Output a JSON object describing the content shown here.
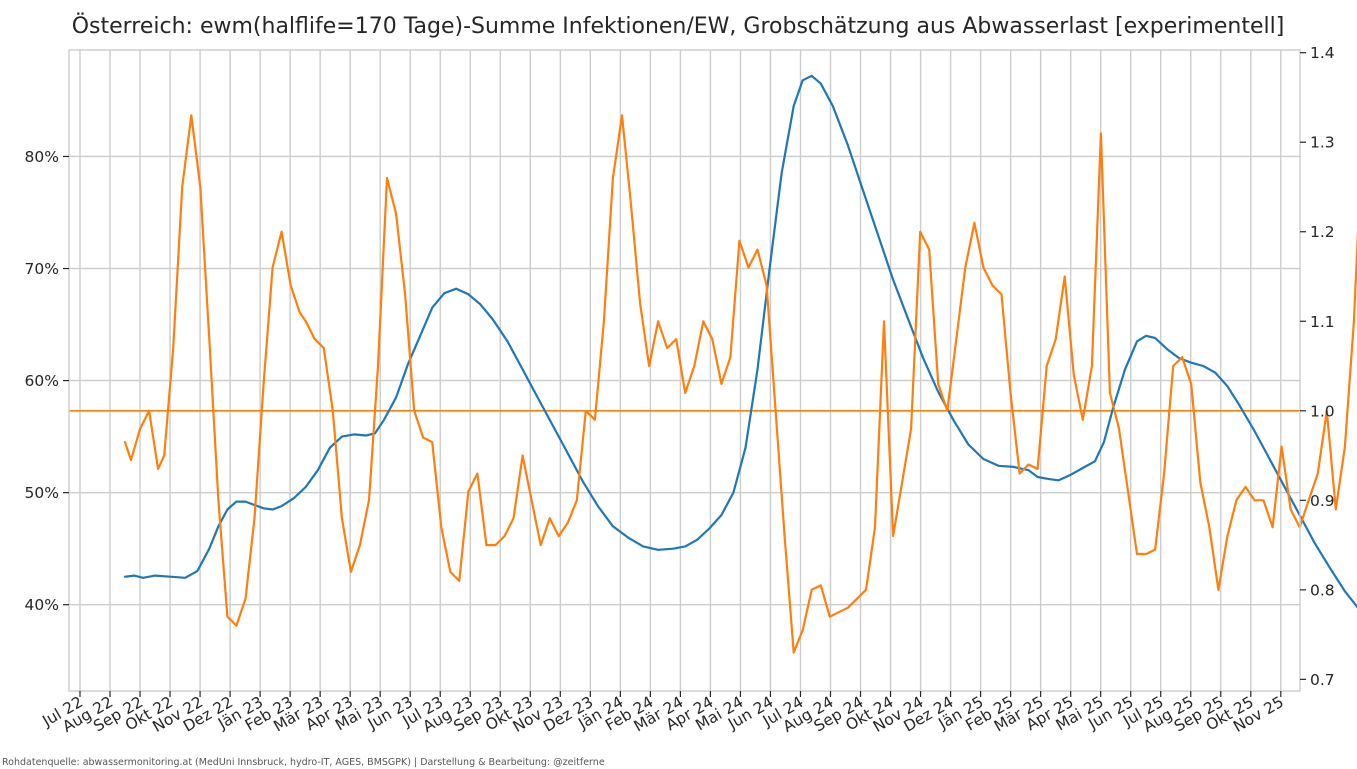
{
  "chart_data": {
    "type": "line",
    "title": "Österreich: ewm(halflife=170 Tage)-Summe Infektionen/EW, Grobschätzung aus Abwasserlast [experimentell]",
    "source_note": "Rohdatenquelle: abwassermonitoring.at (MedUni Innsbruck, hydro-IT, AGES, BMSGPK) | Darstellung & Bearbeitung: @zeitferne",
    "x_axis": {
      "type": "months",
      "range": [
        "2022-06-16",
        "2025-11-16"
      ],
      "tick_labels": [
        "Jul 22",
        "Aug 22",
        "Sep 22",
        "Okt 22",
        "Nov 22",
        "Dez 22",
        "Jän 23",
        "Feb 23",
        "Mär 23",
        "Apr 23",
        "Mai 23",
        "Jun 23",
        "Jul 23",
        "Aug 23",
        "Sep 23",
        "Okt 23",
        "Nov 23",
        "Dez 23",
        "Jän 24",
        "Feb 24",
        "Mär 24",
        "Apr 24",
        "Mai 24",
        "Jun 24",
        "Jul 24",
        "Aug 24",
        "Sep 24",
        "Okt 24",
        "Nov 24",
        "Dez 24",
        "Jän 25",
        "Feb 25",
        "Mär 25",
        "Apr 25",
        "Mai 25",
        "Jun 25",
        "Jul 25",
        "Aug 25",
        "Sep 25",
        "Okt 25",
        "Nov 25"
      ]
    },
    "y_left": {
      "range": [
        32.3,
        89.5
      ],
      "unit": "%",
      "ticks": [
        40,
        50,
        60,
        70,
        80
      ],
      "tick_labels": [
        "40%",
        "50%",
        "60%",
        "70%",
        "80%"
      ]
    },
    "y_right": {
      "range": [
        0.687,
        1.403
      ],
      "ticks": [
        0.7,
        0.8,
        0.9,
        1.0,
        1.1,
        1.2,
        1.3,
        1.4
      ],
      "tick_labels": [
        "0.7",
        "0.8",
        "0.9",
        "1.0",
        "1.1",
        "1.2",
        "1.3",
        "1.4"
      ]
    },
    "reference_line": {
      "axis": "right",
      "value": 1.0,
      "color": "#ff7f0e"
    },
    "grid": true,
    "series": [
      {
        "axis": "left",
        "color": "#1f77b4",
        "points": [
          [
            0,
            42.5
          ],
          [
            0.3,
            42.6
          ],
          [
            0.6,
            42.4
          ],
          [
            1.0,
            42.6
          ],
          [
            1.5,
            42.5
          ],
          [
            2.0,
            42.4
          ],
          [
            2.4,
            43.0
          ],
          [
            2.8,
            45.0
          ],
          [
            3.1,
            47.0
          ],
          [
            3.4,
            48.5
          ],
          [
            3.7,
            49.2
          ],
          [
            4.0,
            49.2
          ],
          [
            4.3,
            48.9
          ],
          [
            4.6,
            48.6
          ],
          [
            4.9,
            48.5
          ],
          [
            5.2,
            48.8
          ],
          [
            5.6,
            49.5
          ],
          [
            6.0,
            50.5
          ],
          [
            6.4,
            52.0
          ],
          [
            6.8,
            54.0
          ],
          [
            7.2,
            55.0
          ],
          [
            7.6,
            55.2
          ],
          [
            8.0,
            55.1
          ],
          [
            8.3,
            55.3
          ],
          [
            8.6,
            56.5
          ],
          [
            9.0,
            58.5
          ],
          [
            9.4,
            61.5
          ],
          [
            9.8,
            64.0
          ],
          [
            10.2,
            66.5
          ],
          [
            10.6,
            67.8
          ],
          [
            11.0,
            68.2
          ],
          [
            11.4,
            67.7
          ],
          [
            11.8,
            66.8
          ],
          [
            12.2,
            65.5
          ],
          [
            12.7,
            63.5
          ],
          [
            13.2,
            61.0
          ],
          [
            13.7,
            58.5
          ],
          [
            14.2,
            56.0
          ],
          [
            14.7,
            53.5
          ],
          [
            15.2,
            51.0
          ],
          [
            15.7,
            48.8
          ],
          [
            16.2,
            47.0
          ],
          [
            16.7,
            46.0
          ],
          [
            17.2,
            45.2
          ],
          [
            17.7,
            44.9
          ],
          [
            18.2,
            45.0
          ],
          [
            18.6,
            45.2
          ],
          [
            19.0,
            45.8
          ],
          [
            19.4,
            46.8
          ],
          [
            19.8,
            48.0
          ],
          [
            20.2,
            50.0
          ],
          [
            20.6,
            54.0
          ],
          [
            21.0,
            61.0
          ],
          [
            21.4,
            70.0
          ],
          [
            21.8,
            78.5
          ],
          [
            22.2,
            84.5
          ],
          [
            22.5,
            86.8
          ],
          [
            22.8,
            87.2
          ],
          [
            23.1,
            86.5
          ],
          [
            23.5,
            84.5
          ],
          [
            24.0,
            81.0
          ],
          [
            24.5,
            77.0
          ],
          [
            25.0,
            73.0
          ],
          [
            25.5,
            69.0
          ],
          [
            26.0,
            65.5
          ],
          [
            26.5,
            62.0
          ],
          [
            27.0,
            59.0
          ],
          [
            27.5,
            56.5
          ],
          [
            28.0,
            54.3
          ],
          [
            28.5,
            53.0
          ],
          [
            29.0,
            52.4
          ],
          [
            29.5,
            52.3
          ],
          [
            30.0,
            52.0
          ],
          [
            30.3,
            51.4
          ],
          [
            30.7,
            51.2
          ],
          [
            31.0,
            51.1
          ],
          [
            31.4,
            51.6
          ],
          [
            31.8,
            52.2
          ],
          [
            32.2,
            52.8
          ],
          [
            32.5,
            54.5
          ],
          [
            32.8,
            57.5
          ],
          [
            33.2,
            61.0
          ],
          [
            33.6,
            63.5
          ],
          [
            33.9,
            64.0
          ],
          [
            34.2,
            63.8
          ],
          [
            34.6,
            62.8
          ],
          [
            35.0,
            62.0
          ],
          [
            35.4,
            61.6
          ],
          [
            35.8,
            61.3
          ],
          [
            36.2,
            60.7
          ],
          [
            36.6,
            59.5
          ],
          [
            37.0,
            57.8
          ],
          [
            37.5,
            55.5
          ],
          [
            38.0,
            53.0
          ],
          [
            38.5,
            50.5
          ],
          [
            39.0,
            48.0
          ],
          [
            39.5,
            45.5
          ],
          [
            40.0,
            43.3
          ],
          [
            40.5,
            41.2
          ],
          [
            41.0,
            39.5
          ],
          [
            41.4,
            38.5
          ],
          [
            41.8,
            38.0
          ],
          [
            42.2,
            37.5
          ],
          [
            42.6,
            36.8
          ],
          [
            43.0,
            36.0
          ],
          [
            43.4,
            35.4
          ],
          [
            43.8,
            35.0
          ],
          [
            44.1,
            34.9
          ],
          [
            44.4,
            35.0
          ],
          [
            44.7,
            35.0
          ],
          [
            44.9,
            35.3
          ],
          [
            45.2,
            35.8
          ]
        ]
      },
      {
        "axis": "left",
        "color": "#1f77b4",
        "style": "dashed",
        "points": [
          [
            45.2,
            35.8
          ],
          [
            45.6,
            36.3
          ],
          [
            46.0,
            36.8
          ],
          [
            46.4,
            37.2
          ]
        ]
      },
      {
        "axis": "right",
        "color": "#ff7f0e",
        "points": [
          [
            0,
            0.965
          ],
          [
            0.2,
            0.945
          ],
          [
            0.5,
            0.98
          ],
          [
            0.8,
            1.0
          ],
          [
            1.1,
            0.935
          ],
          [
            1.3,
            0.95
          ],
          [
            1.6,
            1.07
          ],
          [
            1.9,
            1.25
          ],
          [
            2.2,
            1.33
          ],
          [
            2.5,
            1.25
          ],
          [
            2.8,
            1.08
          ],
          [
            3.1,
            0.9
          ],
          [
            3.4,
            0.77
          ],
          [
            3.7,
            0.76
          ],
          [
            4.0,
            0.79
          ],
          [
            4.3,
            0.88
          ],
          [
            4.6,
            1.03
          ],
          [
            4.9,
            1.16
          ],
          [
            5.2,
            1.2
          ],
          [
            5.5,
            1.14
          ],
          [
            5.8,
            1.11
          ],
          [
            6.0,
            1.1
          ],
          [
            6.3,
            1.08
          ],
          [
            6.6,
            1.07
          ],
          [
            6.9,
            1.0
          ],
          [
            7.2,
            0.88
          ],
          [
            7.5,
            0.82
          ],
          [
            7.8,
            0.85
          ],
          [
            8.1,
            0.9
          ],
          [
            8.4,
            1.05
          ],
          [
            8.7,
            1.26
          ],
          [
            9.0,
            1.22
          ],
          [
            9.3,
            1.13
          ],
          [
            9.6,
            1.0
          ],
          [
            9.9,
            0.97
          ],
          [
            10.2,
            0.965
          ],
          [
            10.5,
            0.87
          ],
          [
            10.8,
            0.82
          ],
          [
            11.1,
            0.81
          ],
          [
            11.4,
            0.91
          ],
          [
            11.7,
            0.93
          ],
          [
            12.0,
            0.85
          ],
          [
            12.3,
            0.85
          ],
          [
            12.6,
            0.86
          ],
          [
            12.9,
            0.88
          ],
          [
            13.2,
            0.95
          ],
          [
            13.5,
            0.9
          ],
          [
            13.8,
            0.85
          ],
          [
            14.1,
            0.88
          ],
          [
            14.4,
            0.86
          ],
          [
            14.7,
            0.875
          ],
          [
            15.0,
            0.9
          ],
          [
            15.3,
            1.0
          ],
          [
            15.6,
            0.99
          ],
          [
            15.9,
            1.1
          ],
          [
            16.2,
            1.26
          ],
          [
            16.5,
            1.33
          ],
          [
            16.8,
            1.23
          ],
          [
            17.1,
            1.12
          ],
          [
            17.4,
            1.05
          ],
          [
            17.7,
            1.1
          ],
          [
            18.0,
            1.07
          ],
          [
            18.3,
            1.08
          ],
          [
            18.6,
            1.02
          ],
          [
            18.9,
            1.05
          ],
          [
            19.2,
            1.1
          ],
          [
            19.5,
            1.08
          ],
          [
            19.8,
            1.03
          ],
          [
            20.1,
            1.06
          ],
          [
            20.4,
            1.19
          ],
          [
            20.7,
            1.16
          ],
          [
            21.0,
            1.18
          ],
          [
            21.3,
            1.14
          ],
          [
            21.6,
            1.0
          ],
          [
            21.9,
            0.86
          ],
          [
            22.2,
            0.73
          ],
          [
            22.5,
            0.755
          ],
          [
            22.8,
            0.8
          ],
          [
            23.1,
            0.805
          ],
          [
            23.4,
            0.77
          ],
          [
            23.7,
            0.775
          ],
          [
            24.0,
            0.78
          ],
          [
            24.3,
            0.79
          ],
          [
            24.6,
            0.8
          ],
          [
            24.9,
            0.87
          ],
          [
            25.2,
            1.1
          ],
          [
            25.5,
            0.86
          ],
          [
            25.8,
            0.92
          ],
          [
            26.1,
            0.98
          ],
          [
            26.4,
            1.2
          ],
          [
            26.7,
            1.18
          ],
          [
            27.0,
            1.03
          ],
          [
            27.3,
            1.0
          ],
          [
            27.6,
            1.08
          ],
          [
            27.9,
            1.16
          ],
          [
            28.2,
            1.21
          ],
          [
            28.5,
            1.16
          ],
          [
            28.8,
            1.14
          ],
          [
            29.1,
            1.13
          ],
          [
            29.4,
            1.02
          ],
          [
            29.7,
            0.93
          ],
          [
            30.0,
            0.94
          ],
          [
            30.3,
            0.935
          ],
          [
            30.6,
            1.05
          ],
          [
            30.9,
            1.08
          ],
          [
            31.2,
            1.15
          ],
          [
            31.5,
            1.04
          ],
          [
            31.8,
            0.99
          ],
          [
            32.1,
            1.05
          ],
          [
            32.4,
            1.31
          ],
          [
            32.7,
            1.02
          ],
          [
            33.0,
            0.98
          ],
          [
            33.3,
            0.91
          ],
          [
            33.6,
            0.84
          ],
          [
            33.9,
            0.84
          ],
          [
            34.2,
            0.845
          ],
          [
            34.5,
            0.93
          ],
          [
            34.8,
            1.05
          ],
          [
            35.1,
            1.06
          ],
          [
            35.4,
            1.03
          ],
          [
            35.7,
            0.92
          ],
          [
            36.0,
            0.87
          ],
          [
            36.3,
            0.8
          ],
          [
            36.6,
            0.86
          ],
          [
            36.9,
            0.9
          ],
          [
            37.2,
            0.915
          ],
          [
            37.5,
            0.9
          ],
          [
            37.8,
            0.9
          ],
          [
            38.1,
            0.87
          ],
          [
            38.4,
            0.96
          ],
          [
            38.7,
            0.89
          ],
          [
            39.0,
            0.87
          ],
          [
            39.3,
            0.9
          ],
          [
            39.6,
            0.93
          ],
          [
            39.9,
            1.0
          ],
          [
            40.2,
            0.89
          ],
          [
            40.5,
            0.96
          ],
          [
            40.8,
            1.1
          ],
          [
            41.1,
            1.32
          ],
          [
            41.4,
            1.25
          ],
          [
            41.7,
            1.08
          ],
          [
            42.0,
            0.94
          ],
          [
            42.3,
            0.9
          ],
          [
            42.6,
            0.91
          ],
          [
            42.9,
            1.1
          ],
          [
            43.2,
            1.18
          ],
          [
            43.5,
            1.03
          ],
          [
            43.8,
            1.0
          ],
          [
            44.1,
            1.12
          ],
          [
            44.4,
            1.13
          ],
          [
            44.7,
            1.0
          ],
          [
            45.0,
            0.99
          ],
          [
            45.3,
            1.13
          ]
        ]
      }
    ]
  }
}
